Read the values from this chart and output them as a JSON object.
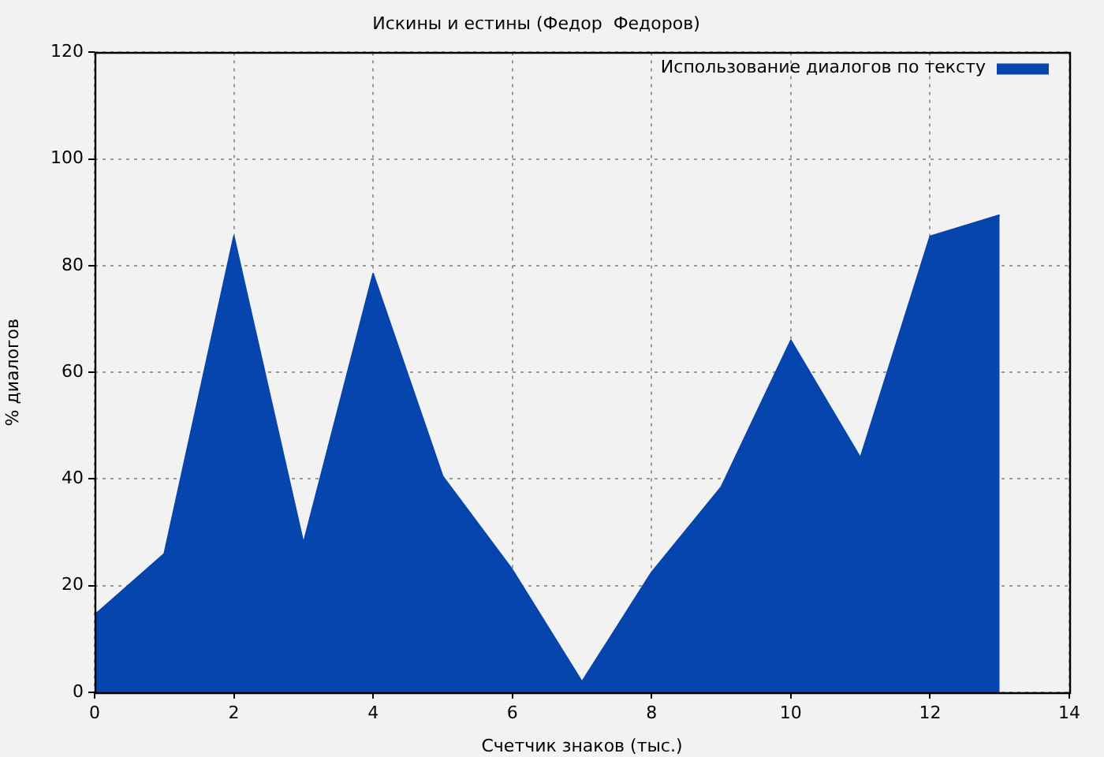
{
  "chart_data": {
    "type": "area",
    "title": "Искины и естины (Федор  Федоров)",
    "xlabel": "Счетчик знаков (тыс.)",
    "ylabel": "% диалогов",
    "x": [
      0,
      1,
      2,
      3,
      4,
      5,
      6,
      7,
      8,
      9,
      10,
      11,
      12,
      13
    ],
    "series": [
      {
        "name": "Использование диалогов по тексту",
        "color": "#0645ad",
        "values": [
          14.5,
          26,
          85.5,
          28,
          78.5,
          40.5,
          23,
          2,
          22.5,
          38.5,
          66,
          44,
          85.5,
          89.5
        ]
      }
    ],
    "xlim": [
      0,
      14
    ],
    "xticks": [
      0,
      2,
      4,
      6,
      8,
      10,
      12,
      14
    ],
    "ylim": [
      0,
      120
    ],
    "yticks": [
      0,
      20,
      40,
      60,
      80,
      100,
      120
    ],
    "grid": true,
    "legend": "top right"
  }
}
